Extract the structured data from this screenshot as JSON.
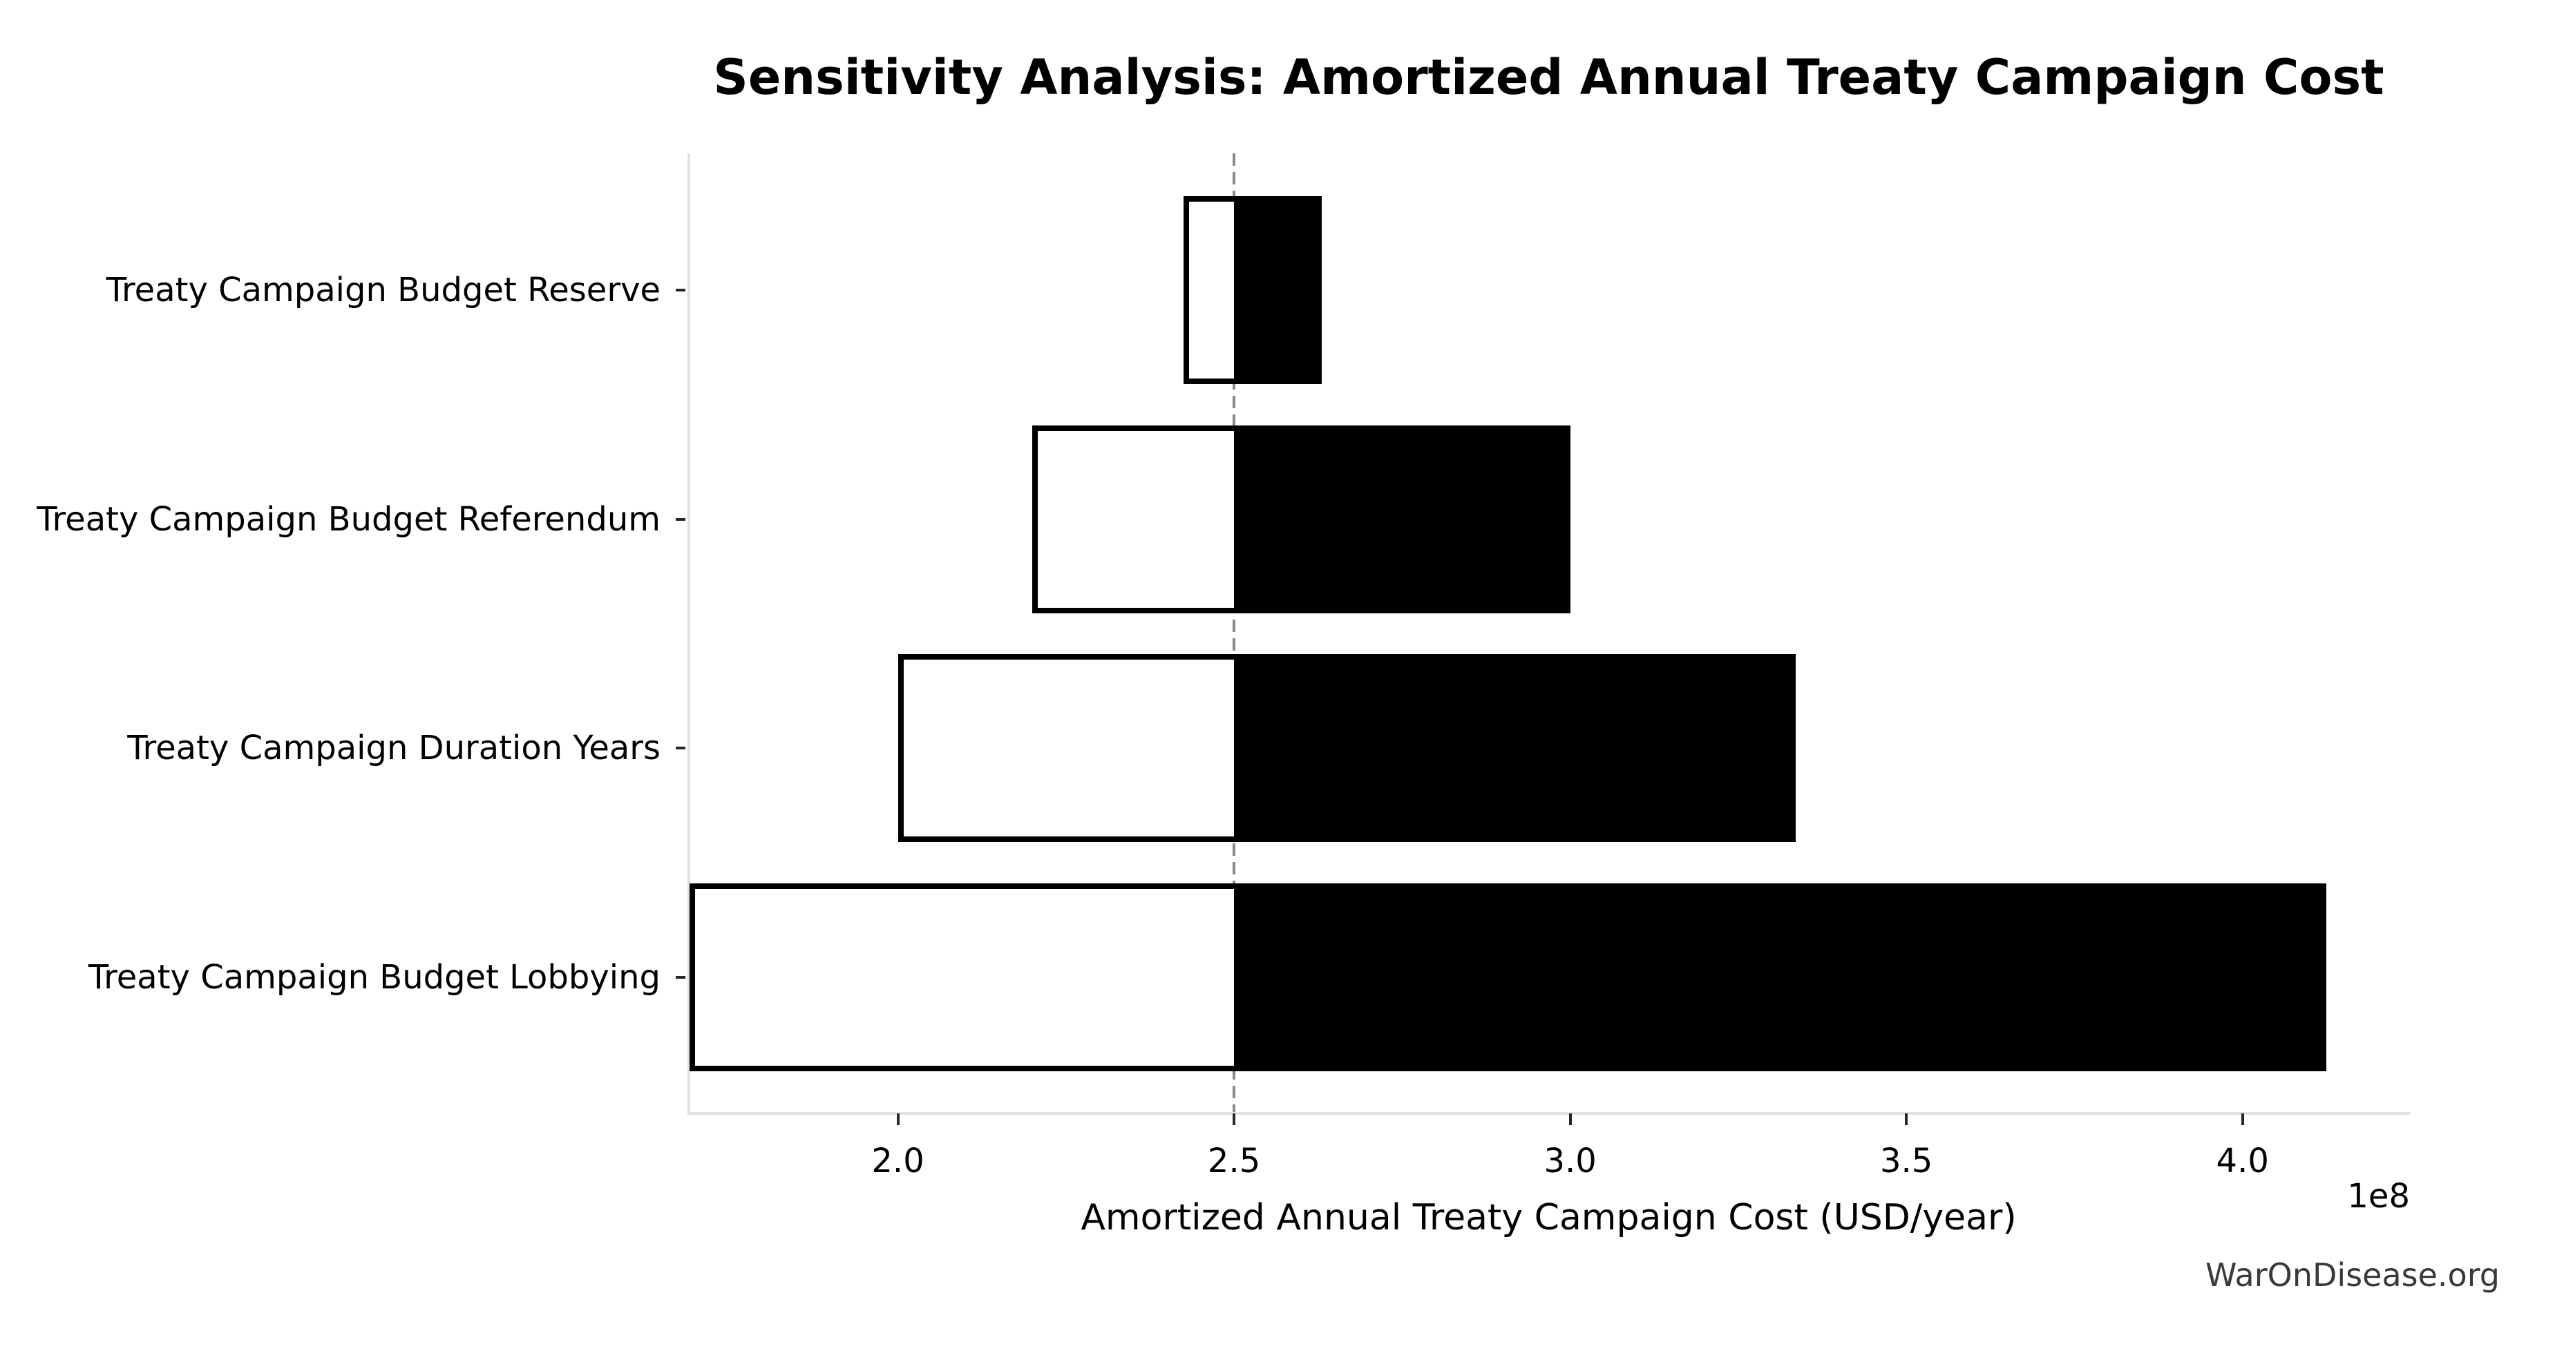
{
  "title": "Sensitivity Analysis: Amortized Annual Treaty Campaign Cost",
  "watermark": "WarOnDisease.org",
  "chart_data": {
    "type": "bar",
    "orientation": "horizontal",
    "variant": "tornado-sensitivity",
    "title": "Sensitivity Analysis: Amortized Annual Treaty Campaign Cost",
    "xlabel": "Amortized Annual Treaty Campaign Cost (USD/year)",
    "x_scale_offset_label": "1e8",
    "unit_multiplier": 100000000,
    "baseline": 2.5,
    "categories": [
      "Treaty Campaign Budget Reserve",
      "Treaty Campaign Budget Referendum",
      "Treaty Campaign Duration Years",
      "Treaty Campaign Budget Lobbying"
    ],
    "series": [
      {
        "name": "low",
        "fill": "#ffffff",
        "values": [
          2.425,
          2.2,
          2.0,
          1.69
        ]
      },
      {
        "name": "high",
        "fill": "#000000",
        "values": [
          2.63,
          3.0,
          3.335,
          4.125
        ]
      }
    ],
    "xticks": [
      2.0,
      2.5,
      3.0,
      3.5,
      4.0
    ],
    "xtick_labels": [
      "2.0",
      "2.5",
      "3.0",
      "3.5",
      "4.0"
    ],
    "xlim": [
      1.687,
      4.249
    ],
    "grid": false,
    "legend": null,
    "baseline_line": {
      "x": 2.5,
      "style": "dashed",
      "color": "#8a8a8a"
    },
    "colors": {
      "bar_edge": "#000000",
      "bar_low_fill": "#ffffff",
      "bar_high_fill": "#000000",
      "spine": "#e2e2e2",
      "tick": "#262626",
      "text": "#000000",
      "watermark": "#3a3a3a"
    }
  }
}
